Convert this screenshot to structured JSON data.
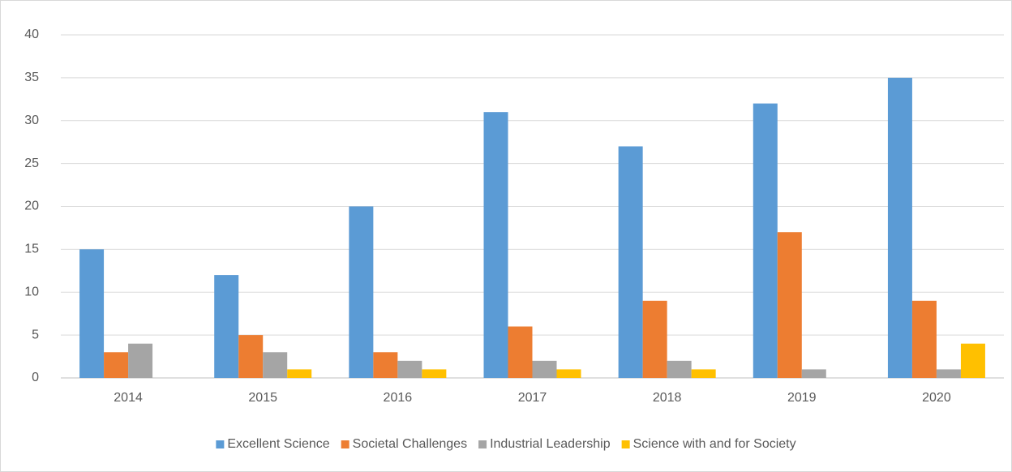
{
  "chart_data": {
    "type": "bar",
    "categories": [
      "2014",
      "2015",
      "2016",
      "2017",
      "2018",
      "2019",
      "2020"
    ],
    "series": [
      {
        "name": "Excellent Science",
        "color": "#5b9bd5",
        "values": [
          15,
          12,
          20,
          31,
          27,
          32,
          35
        ]
      },
      {
        "name": "Societal Challenges",
        "color": "#ed7d31",
        "values": [
          3,
          5,
          3,
          6,
          9,
          17,
          9
        ]
      },
      {
        "name": "Industrial Leadership",
        "color": "#a5a5a5",
        "values": [
          4,
          3,
          2,
          2,
          2,
          1,
          1
        ]
      },
      {
        "name": "Science with and for Society",
        "color": "#ffc000",
        "values": [
          0,
          1,
          1,
          1,
          1,
          0,
          4
        ]
      }
    ],
    "ylim": [
      0,
      40
    ],
    "yticks": [
      0,
      5,
      10,
      15,
      20,
      25,
      30,
      35,
      40
    ],
    "grid": true,
    "legend": "bottom"
  }
}
